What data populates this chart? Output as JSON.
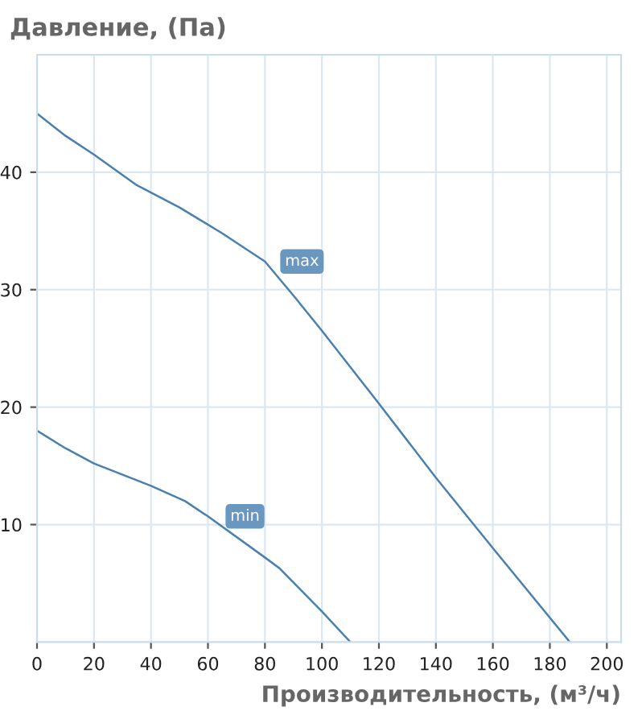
{
  "chart_data": {
    "type": "line",
    "ylabel": "Давление, (Па)",
    "xlabel": "Производительность, (м³/ч)",
    "series": [
      {
        "name": "max",
        "color": "#4a80b0",
        "x": [
          0,
          10,
          20,
          35,
          50,
          65,
          80,
          90,
          100,
          120,
          140,
          160,
          187
        ],
        "values": [
          45,
          43.1,
          41.5,
          38.9,
          37,
          34.8,
          32.4,
          29.5,
          26.5,
          20.3,
          14,
          8,
          0
        ]
      },
      {
        "name": "min",
        "color": "#4a80b0",
        "x": [
          0,
          10,
          20,
          40,
          52,
          60,
          80,
          85,
          100,
          110
        ],
        "values": [
          18,
          16.5,
          15.2,
          13.3,
          12,
          10.7,
          7.2,
          6.3,
          2.6,
          0
        ]
      }
    ],
    "xlim": [
      0,
      205
    ],
    "ylim": [
      0,
      50
    ],
    "xticks": [
      0,
      20,
      40,
      60,
      80,
      100,
      120,
      140,
      160,
      180,
      200
    ],
    "yticks": [
      10,
      20,
      30,
      40
    ],
    "grid": true,
    "legend": false,
    "marker": "none",
    "line_style": "solid"
  }
}
